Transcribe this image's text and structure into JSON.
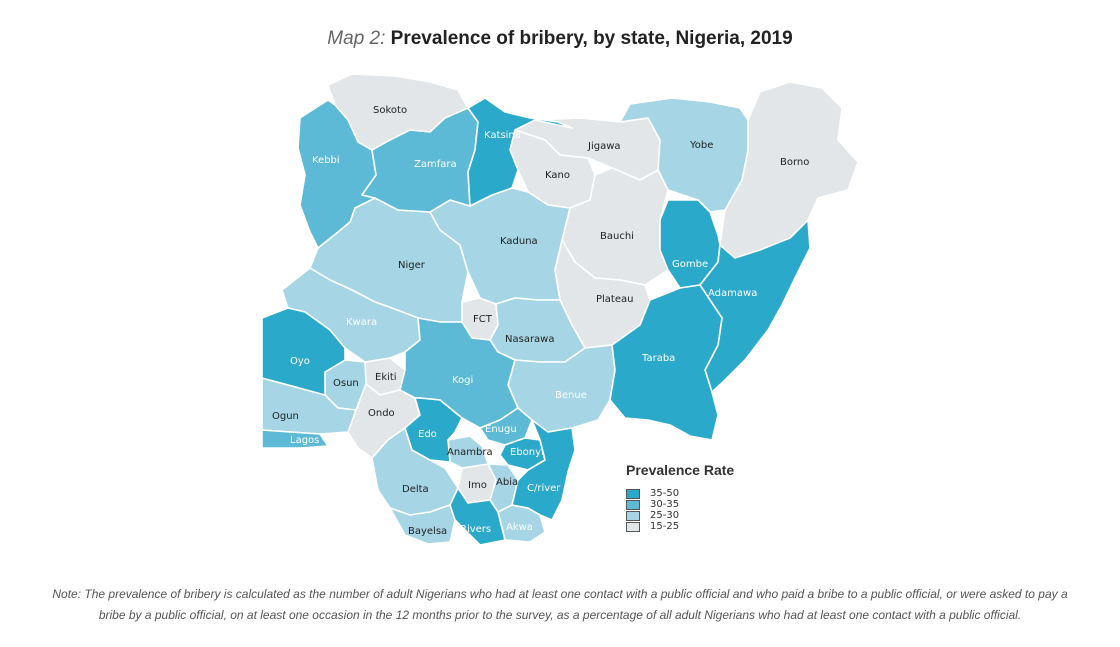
{
  "title": {
    "prefix": "Map 2:",
    "main": "Prevalence of bribery, by state, Nigeria, 2019"
  },
  "colors": {
    "c35_50": "#2aa9cb",
    "c30_35": "#5cbad6",
    "c25_30": "#a6d5e6",
    "c15_25": "#e2e6e9"
  },
  "legend": {
    "title": "Prevalence Rate",
    "items": [
      {
        "label": "35-50",
        "color": "#2aa9cb"
      },
      {
        "label": "30-35",
        "color": "#5cbad6"
      },
      {
        "label": "25-30",
        "color": "#a6d5e6"
      },
      {
        "label": "15-25",
        "color": "#e2e6e9"
      }
    ]
  },
  "states": {
    "sokoto": "Sokoto",
    "kebbi": "Kebbi",
    "zamfara": "Zamfara",
    "katsina": "Katsina",
    "jigawa": "Jigawa",
    "kano": "Kano",
    "yobe": "Yobe",
    "borno": "Borno",
    "niger": "Niger",
    "kaduna": "Kaduna",
    "bauchi": "Bauchi",
    "gombe": "Gombe",
    "adamawa": "Adamawa",
    "plateau": "Plateau",
    "fct": "FCT",
    "nasarawa": "Nasarawa",
    "kwara": "Kwara",
    "oyo": "Oyo",
    "osun": "Osun",
    "ekiti": "Ekiti",
    "kogi": "Kogi",
    "taraba": "Taraba",
    "benue": "Benue",
    "ogun": "Ogun",
    "ondo": "Ondo",
    "lagos": "Lagos",
    "edo": "Edo",
    "enugu": "Enugu",
    "ebonyi": "Ebonyi",
    "anambra": "Anambra",
    "delta": "Delta",
    "imo": "Imo",
    "abia": "Abia",
    "cross_river": "C/river",
    "bayelsa": "Bayelsa",
    "rivers": "Rivers",
    "akwa_ibom": "Akwa"
  },
  "note": "Note: The prevalence of bribery is calculated as the number of adult Nigerians who had at least one contact with a public official and who paid a bribe to a public official, or were asked to pay a bribe by a public official, on at least one occasion in the 12 months prior to the survey, as a percentage of all adult Nigerians who had at least one contact with a public official."
}
